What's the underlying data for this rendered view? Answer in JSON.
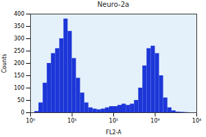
{
  "chart_data": {
    "type": "histogram",
    "title": "Neuro-2a",
    "x_label": "FL2-A",
    "y_label": "Counts",
    "bins": [
      1,
      1.26,
      1.58,
      2.0,
      2.51,
      3.16,
      3.98,
      5.01,
      6.31,
      7.94,
      10,
      12.6,
      15.8,
      20.0,
      25.1,
      31.6,
      39.8,
      50.1,
      63.1,
      79.4,
      100,
      126,
      158,
      200,
      251,
      316,
      398,
      501,
      631,
      794,
      1000,
      1260,
      1580,
      2000,
      2510,
      3160,
      3980,
      5010,
      6310,
      7940,
      10000
    ],
    "values": [
      0,
      5,
      40,
      120,
      200,
      240,
      260,
      300,
      380,
      330,
      220,
      140,
      80,
      40,
      20,
      15,
      12,
      15,
      20,
      25,
      25,
      30,
      35,
      30,
      35,
      50,
      100,
      190,
      260,
      270,
      240,
      150,
      60,
      20,
      8,
      3,
      2,
      1,
      0,
      0
    ],
    "color": "#1c36d8",
    "log": "x",
    "xlim": [
      1,
      10000
    ],
    "xticks": [
      {
        "value": 1,
        "label": "10⁰"
      },
      {
        "value": 10,
        "label": "10¹"
      },
      {
        "value": 100,
        "label": "10²"
      },
      {
        "value": 1000,
        "label": "10³"
      },
      {
        "value": 10000,
        "label": "10⁴"
      }
    ],
    "ylim": [
      0,
      400
    ],
    "yticks": [
      0,
      50,
      100,
      150,
      200,
      250,
      300,
      350,
      400
    ]
  }
}
